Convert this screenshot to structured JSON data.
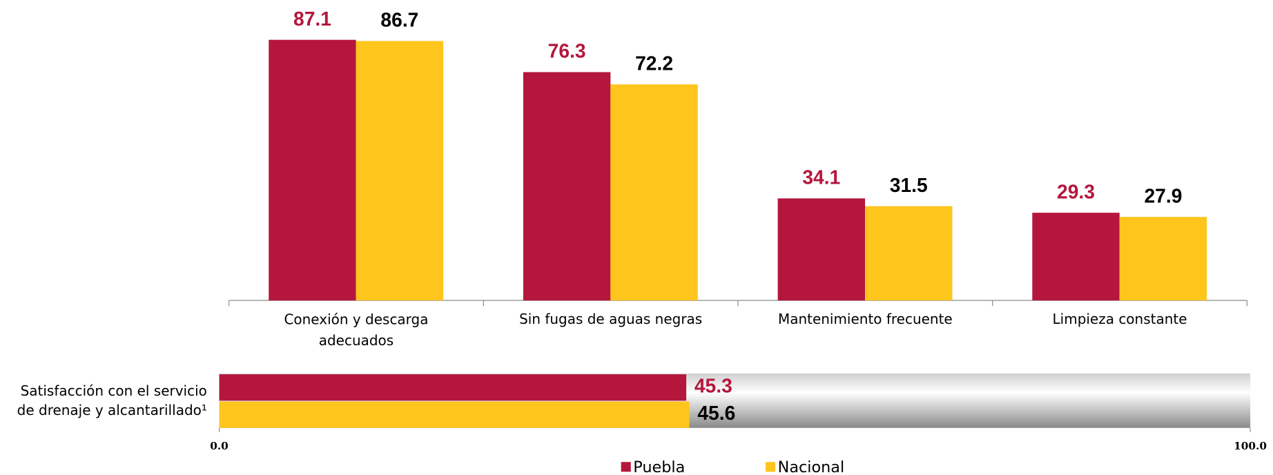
{
  "chart_data": [
    {
      "type": "bar",
      "categories": [
        "Conexión y descarga\nadecuados",
        "Sin fugas de aguas negras",
        "Mantenimiento frecuente",
        "Limpieza constante"
      ],
      "series": [
        {
          "color": "#b5163c",
          "values": [
            87.1,
            76.3,
            34.1,
            29.3
          ]
        },
        {
          "color": "#fec61c",
          "values": [
            86.7,
            72.2,
            31.5,
            27.9
          ]
        }
      ]
    },
    {
      "type": "hbar",
      "categories": [
        "Satisfacción con el servicio\nde drenaje y alcantarillado¹"
      ],
      "series": [
        {
          "name": "Puebla",
          "color": "#b5163c",
          "values": [
            45.3
          ]
        },
        {
          "name": "Nacional",
          "color": "#fec61c",
          "values": [
            45.6
          ]
        }
      ],
      "xlim": [
        0,
        100
      ],
      "xticks": [
        {
          "value": 0,
          "label": "0.0"
        },
        {
          "value": 100,
          "label": "100.0"
        }
      ],
      "legend": "bottom"
    }
  ]
}
